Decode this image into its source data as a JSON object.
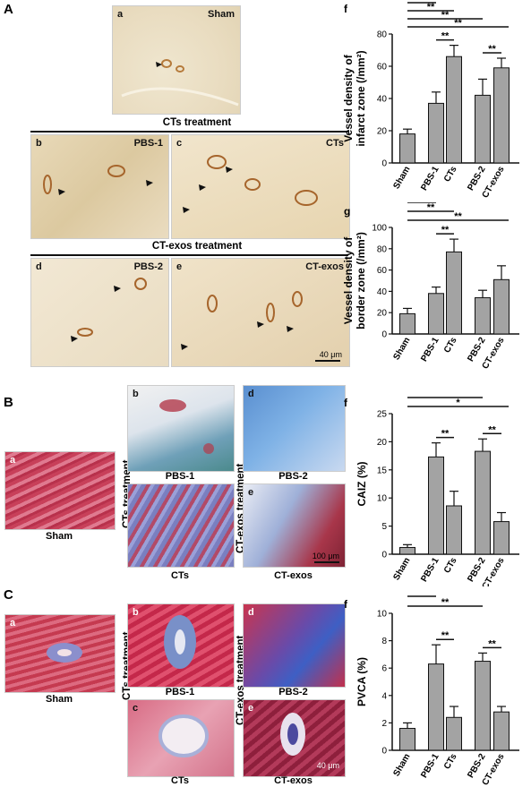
{
  "panels": {
    "A": "A",
    "B": "B",
    "C": "C"
  },
  "panelA": {
    "sham": {
      "letter": "a",
      "label": "Sham"
    },
    "cts_header": "CTs treatment",
    "b": {
      "letter": "b",
      "label": "PBS-1"
    },
    "c": {
      "letter": "c",
      "label": "CTs"
    },
    "exos_header": "CT-exos treatment",
    "d": {
      "letter": "d",
      "label": "PBS-2"
    },
    "e": {
      "letter": "e",
      "label": "CT-exos"
    },
    "scale": "40 μm"
  },
  "panelB": {
    "a": {
      "letter": "a",
      "caption": "Sham"
    },
    "b": {
      "letter": "b",
      "caption": "PBS-1"
    },
    "c": {
      "caption": "CTs"
    },
    "d": {
      "letter": "d",
      "caption": "PBS-2"
    },
    "e": {
      "letter": "e",
      "caption": "CT-exos"
    },
    "cts_side": "CTs treatment",
    "exos_side": "CT-exos treatment",
    "scale": "100 μm"
  },
  "panelC": {
    "a": {
      "letter": "a",
      "caption": "Sham"
    },
    "b": {
      "letter": "b",
      "caption": "PBS-1"
    },
    "c": {
      "letter": "c",
      "caption": "CTs"
    },
    "d": {
      "letter": "d",
      "caption": "PBS-2"
    },
    "e": {
      "letter": "e",
      "caption": "CT-exos"
    },
    "cts_side": "CTs treatment",
    "exos_side": "CT-exos treatment",
    "scale": "40 μm"
  },
  "colors": {
    "bar": "#a3a3a3",
    "axis": "#111111"
  },
  "chart_data": [
    {
      "id": "f1",
      "letter": "f",
      "type": "bar",
      "categories": [
        "Sham",
        "PBS-1",
        "CTs",
        "PBS-2",
        "CT-exos"
      ],
      "values": [
        18,
        37,
        66,
        42,
        59
      ],
      "errors": [
        3,
        7,
        7,
        10,
        6
      ],
      "ylabel": [
        "Vessel density of",
        "infarct zone (/mm²)"
      ],
      "ylim": [
        0,
        80
      ],
      "yticks": [
        0,
        20,
        40,
        60,
        80
      ],
      "sig": [
        {
          "from": 0,
          "to": 4,
          "label": "**"
        },
        {
          "from": 0,
          "to": 3,
          "label": "**"
        },
        {
          "from": 0,
          "to": 2,
          "label": "**"
        },
        {
          "from": 0,
          "to": 1,
          "label": "**"
        },
        {
          "from": 1,
          "to": 2,
          "label": "**"
        },
        {
          "from": 3,
          "to": 4,
          "label": "**"
        }
      ]
    },
    {
      "id": "g",
      "letter": "g",
      "type": "bar",
      "categories": [
        "Sham",
        "PBS-1",
        "CTs",
        "PBS-2",
        "CT-exos"
      ],
      "values": [
        19,
        38,
        77,
        34,
        51
      ],
      "errors": [
        5,
        6,
        12,
        7,
        13
      ],
      "ylabel": [
        "Vessel density of",
        "border zone (/mm²)"
      ],
      "ylim": [
        0,
        100
      ],
      "yticks": [
        0,
        20,
        40,
        60,
        80,
        100
      ],
      "sig": [
        {
          "from": 0,
          "to": 4,
          "label": "**"
        },
        {
          "from": 0,
          "to": 2,
          "label": "**"
        },
        {
          "from": 0,
          "to": 1,
          "label": "*"
        },
        {
          "from": 1,
          "to": 2,
          "label": "**"
        }
      ]
    },
    {
      "id": "f2",
      "letter": "f",
      "type": "bar",
      "categories": [
        "Sham",
        "PBS-1",
        "CTs",
        "PBS-2",
        "CT-exos"
      ],
      "values": [
        1.2,
        17.3,
        8.6,
        18.3,
        5.8
      ],
      "errors": [
        0.5,
        2.5,
        2.6,
        2.2,
        1.6
      ],
      "ylabel": [
        "CAIZ (%)"
      ],
      "ylim": [
        0,
        25
      ],
      "yticks": [
        0,
        5,
        10,
        15,
        20,
        25
      ],
      "sig": [
        {
          "from": 0,
          "to": 4,
          "label": "*"
        },
        {
          "from": 0,
          "to": 3,
          "label": "**"
        },
        {
          "from": 0,
          "to": 2,
          "label": "**"
        },
        {
          "from": 0,
          "to": 1,
          "label": "**"
        },
        {
          "from": 1,
          "to": 2,
          "label": "**"
        },
        {
          "from": 3,
          "to": 4,
          "label": "**"
        }
      ]
    },
    {
      "id": "f3",
      "letter": "f",
      "type": "bar",
      "categories": [
        "Sham",
        "PBS-1",
        "CTs",
        "PBS-2",
        "CT-exos"
      ],
      "values": [
        1.6,
        6.3,
        2.4,
        6.5,
        2.8
      ],
      "errors": [
        0.4,
        1.4,
        0.8,
        0.6,
        0.4
      ],
      "ylabel": [
        "PVCA (%)"
      ],
      "ylim": [
        0,
        10
      ],
      "yticks": [
        0,
        2,
        4,
        6,
        8,
        10
      ],
      "sig": [
        {
          "from": 0,
          "to": 3,
          "label": "**"
        },
        {
          "from": 0,
          "to": 1,
          "label": "**"
        },
        {
          "from": 1,
          "to": 2,
          "label": "**"
        },
        {
          "from": 3,
          "to": 4,
          "label": "**"
        }
      ]
    }
  ]
}
